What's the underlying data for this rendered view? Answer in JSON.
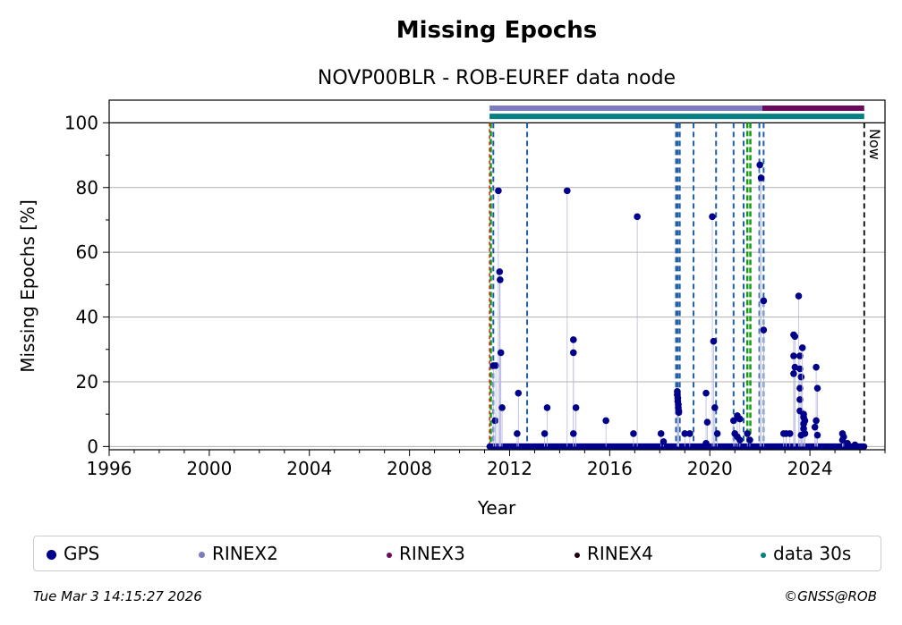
{
  "title": "Missing Epochs",
  "subtitle": "NOVP00BLR - ROB-EUREF data node",
  "footer": {
    "timestamp": "Tue Mar  3 14:15:27 2026",
    "copyright": "©GNSS@ROB"
  },
  "legend": [
    {
      "label": "GPS",
      "color": "#00008b"
    },
    {
      "label": "RINEX2",
      "color": "#7b7bbd"
    },
    {
      "label": "RINEX3",
      "color": "#6a0a5a"
    },
    {
      "label": "RINEX4",
      "color": "#1a0010"
    },
    {
      "label": "data 30s",
      "color": "#008080"
    }
  ],
  "chart_data": {
    "type": "scatter",
    "xlabel": "Year",
    "ylabel": "Missing Epochs [%]",
    "xlim": [
      1996,
      2027.0
    ],
    "ylim": [
      -1,
      107
    ],
    "xticks": [
      1996,
      2000,
      2004,
      2008,
      2012,
      2016,
      2020,
      2024
    ],
    "yticks": [
      0,
      20,
      40,
      60,
      80,
      100
    ],
    "grid": "y",
    "legend_position": "bottom",
    "now_label": "Now",
    "now_year": 2026.17,
    "gps_points": [
      [
        2011.35,
        25
      ],
      [
        2011.42,
        8
      ],
      [
        2011.45,
        25
      ],
      [
        2011.55,
        79
      ],
      [
        2011.6,
        54
      ],
      [
        2011.62,
        51.5
      ],
      [
        2011.65,
        29
      ],
      [
        2011.7,
        12
      ],
      [
        2012.35,
        16.5
      ],
      [
        2012.3,
        4
      ],
      [
        2013.5,
        12
      ],
      [
        2013.4,
        4
      ],
      [
        2014.3,
        79
      ],
      [
        2014.55,
        33
      ],
      [
        2014.55,
        29
      ],
      [
        2014.65,
        12
      ],
      [
        2014.55,
        4
      ],
      [
        2015.85,
        8
      ],
      [
        2016.95,
        4
      ],
      [
        2017.1,
        71
      ],
      [
        2018.05,
        4
      ],
      [
        2018.15,
        1.5
      ],
      [
        2018.7,
        17
      ],
      [
        2018.7,
        16
      ],
      [
        2018.72,
        15
      ],
      [
        2018.72,
        14
      ],
      [
        2018.74,
        13
      ],
      [
        2018.74,
        12
      ],
      [
        2018.76,
        11
      ],
      [
        2018.76,
        10.5
      ],
      [
        2019.0,
        4
      ],
      [
        2019.2,
        4
      ],
      [
        2019.85,
        16.5
      ],
      [
        2019.9,
        7.5
      ],
      [
        2019.85,
        1
      ],
      [
        2020.1,
        71
      ],
      [
        2020.15,
        32.5
      ],
      [
        2020.2,
        12
      ],
      [
        2020.3,
        4
      ],
      [
        2020.95,
        8
      ],
      [
        2021.1,
        9.5
      ],
      [
        2021.2,
        8.5
      ],
      [
        2021.0,
        4
      ],
      [
        2021.1,
        3
      ],
      [
        2021.2,
        2
      ],
      [
        2021.5,
        4
      ],
      [
        2021.6,
        2
      ],
      [
        2022.0,
        87
      ],
      [
        2022.05,
        83
      ],
      [
        2022.15,
        45
      ],
      [
        2022.15,
        36
      ],
      [
        2022.95,
        4
      ],
      [
        2023.05,
        4
      ],
      [
        2023.2,
        4
      ],
      [
        2023.35,
        34.5
      ],
      [
        2023.4,
        34
      ],
      [
        2023.35,
        28
      ],
      [
        2023.4,
        24.5
      ],
      [
        2023.35,
        22.5
      ],
      [
        2023.55,
        46.5
      ],
      [
        2023.6,
        28
      ],
      [
        2023.6,
        24
      ],
      [
        2023.65,
        21.5
      ],
      [
        2023.6,
        18
      ],
      [
        2023.6,
        14.5
      ],
      [
        2023.6,
        11
      ],
      [
        2023.7,
        30.5
      ],
      [
        2023.75,
        10
      ],
      [
        2023.75,
        9
      ],
      [
        2023.8,
        8
      ],
      [
        2023.75,
        7
      ],
      [
        2023.75,
        5.5
      ],
      [
        2023.8,
        4
      ],
      [
        2023.65,
        3.5
      ],
      [
        2024.25,
        24.5
      ],
      [
        2024.3,
        18
      ],
      [
        2024.25,
        8
      ],
      [
        2024.2,
        6
      ],
      [
        2024.3,
        3.5
      ],
      [
        2025.3,
        4
      ],
      [
        2025.35,
        3
      ],
      [
        2025.3,
        2
      ],
      [
        2025.5,
        1
      ],
      [
        2025.8,
        0.5
      ]
    ],
    "gps_baseline": {
      "from": 2011.2,
      "to": 2026.17,
      "value": 0
    },
    "rinex2_bar": {
      "from": 2011.2,
      "to": 2022.1,
      "value": 104.5
    },
    "rinex3_bar": {
      "from": 2022.1,
      "to": 2026.17,
      "value": 104.5
    },
    "data30s_bar": {
      "from": 2011.2,
      "to": 2026.17,
      "value": 102
    },
    "red_line_year": 2011.2,
    "green_lines": [
      2011.25,
      2021.5,
      2021.62
    ],
    "blue_dashed_lines": [
      2011.35,
      2012.7,
      2018.65,
      2018.72,
      2018.8,
      2019.35,
      2020.25,
      2020.95,
      2021.35,
      2021.98,
      2022.15
    ]
  }
}
